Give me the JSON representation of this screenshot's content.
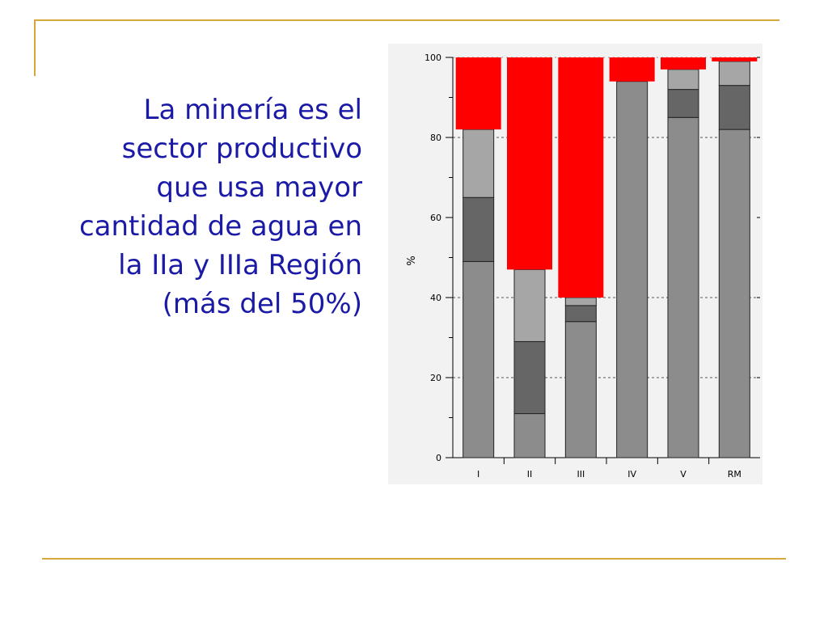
{
  "slide": {
    "headline": "La minería es el sector productivo que usa mayor cantidad de agua en la IIa y IIIa Región (más del 50%)"
  },
  "chart_data": {
    "type": "bar",
    "stacked": true,
    "categories": [
      "I",
      "II",
      "III",
      "IV",
      "V",
      "RM"
    ],
    "ylabel": "%",
    "ylim": [
      0,
      100
    ],
    "yticks": [
      0,
      20,
      40,
      60,
      80,
      100
    ],
    "grid": "dashed horizontal at 20, 40, 80",
    "series": [
      {
        "color": "#8c8c8c",
        "values": [
          49,
          11,
          34,
          94,
          85,
          82
        ]
      },
      {
        "color": "#666666",
        "values": [
          16,
          18,
          4,
          0,
          7,
          11
        ]
      },
      {
        "color": "#a6a6a6",
        "values": [
          17,
          18,
          2,
          0,
          5,
          6
        ]
      },
      {
        "color": "#ff0000",
        "values": [
          18,
          53,
          60,
          6,
          3,
          1
        ]
      }
    ]
  }
}
